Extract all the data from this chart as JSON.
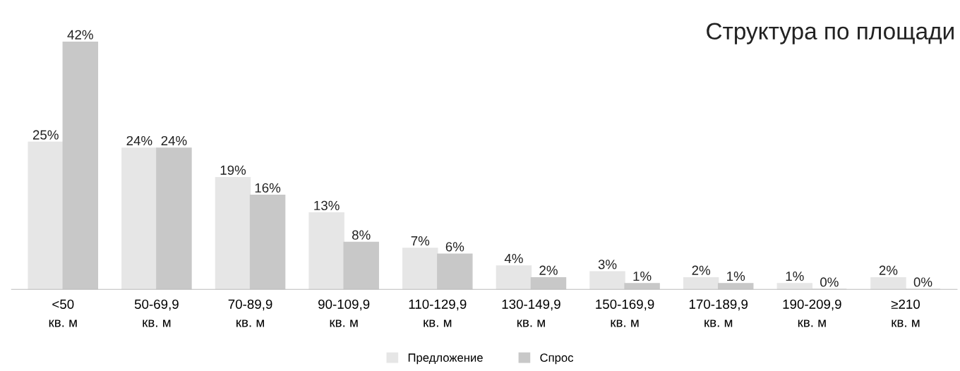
{
  "chart_data": {
    "type": "bar",
    "title": "Структура по площади",
    "categories": [
      "<50\nкв. м",
      "50-69,9\nкв. м",
      "70-89,9\nкв. м",
      "90-109,9\nкв. м",
      "110-129,9\nкв. м",
      "130-149,9\nкв. м",
      "150-169,9\nкв. м",
      "170-189,9\nкв. м",
      "190-209,9\nкв. м",
      "≥210\nкв. м"
    ],
    "series": [
      {
        "name": "Предложение",
        "color": "#e6e6e6",
        "values": [
          25,
          24,
          19,
          13,
          7,
          4,
          3,
          2,
          1,
          2
        ],
        "value_labels": [
          "25%",
          "24%",
          "19%",
          "13%",
          "7%",
          "4%",
          "3%",
          "2%",
          "1%",
          "2%"
        ]
      },
      {
        "name": "Спрос",
        "color": "#c8c8c8",
        "values": [
          42,
          24,
          16,
          8,
          6,
          2,
          1,
          1,
          0,
          0
        ],
        "value_labels": [
          "42%",
          "24%",
          "16%",
          "8%",
          "6%",
          "2%",
          "1%",
          "1%",
          "0%",
          "0%"
        ]
      }
    ],
    "legend": "bottom",
    "grid": false
  }
}
